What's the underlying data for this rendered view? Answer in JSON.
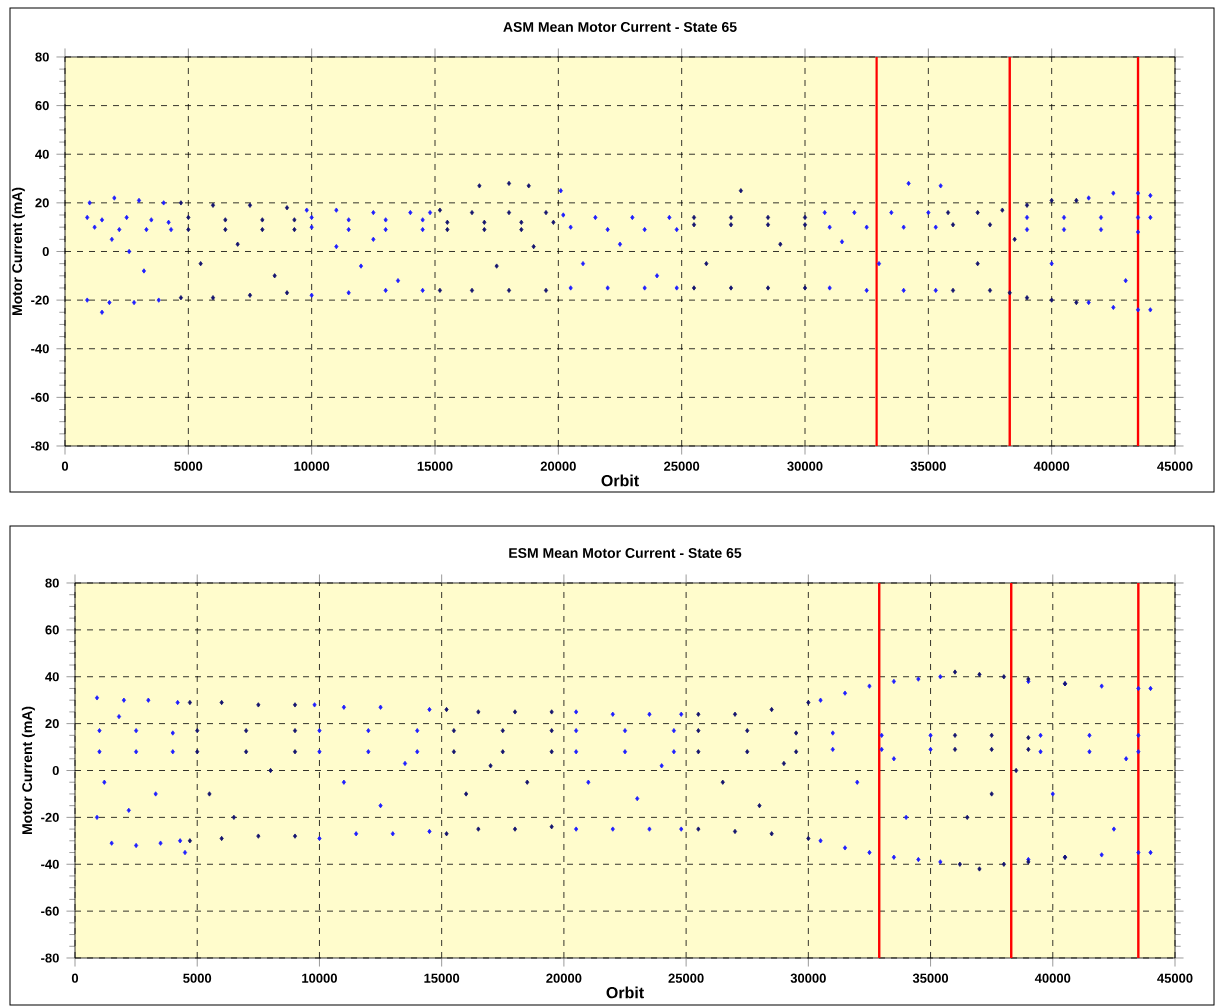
{
  "chart_data": [
    {
      "type": "scatter",
      "title": "ASM Mean Motor Current - State 65",
      "xlabel": "Orbit",
      "ylabel": "Motor Current (mA)",
      "xlim": [
        0,
        45000
      ],
      "ylim": [
        -80,
        80
      ],
      "xticks": [
        0,
        5000,
        10000,
        15000,
        20000,
        25000,
        30000,
        35000,
        40000,
        45000
      ],
      "yticks": [
        -80,
        -60,
        -40,
        -20,
        0,
        20,
        40,
        60,
        80
      ],
      "grid": true,
      "marker": "diamond",
      "series": [
        {
          "color": "#1e1eff",
          "x": [
            900,
            1500,
            2500,
            3500,
            4200,
            1000,
            2000,
            3000,
            4000,
            1200,
            2200,
            3300,
            4300,
            900,
            1800,
            2800,
            3800,
            1500,
            2600,
            3200,
            1900,
            9800,
            11000,
            12500,
            14000,
            14800,
            10000,
            11500,
            13000,
            14500,
            10000,
            11500,
            13000,
            14500,
            10000,
            11500,
            13000,
            14500,
            11000,
            12000,
            13500,
            12500,
            20200,
            21500,
            23000,
            24500,
            20500,
            22000,
            23500,
            24800,
            20500,
            22000,
            23500,
            24800,
            21000,
            22500,
            24000,
            20100,
            30800,
            32000,
            33500,
            35000,
            31000,
            32500,
            34000,
            35300,
            31000,
            32500,
            34000,
            35300,
            34200,
            35500,
            33000,
            31500,
            39000,
            40500,
            42000,
            43500,
            44000,
            39000,
            40500,
            42000,
            43500,
            41500,
            42500,
            43500,
            44000,
            41500,
            42500,
            43500,
            44000,
            40000,
            43000
          ],
          "values": [
            14,
            13,
            14,
            13,
            12,
            20,
            22,
            21,
            20,
            10,
            9,
            9,
            9,
            -20,
            -21,
            -21,
            -20,
            -25,
            0,
            -8,
            5,
            17,
            17,
            16,
            16,
            16,
            14,
            13,
            13,
            13,
            10,
            9,
            9,
            9,
            -18,
            -17,
            -16,
            -16,
            2,
            -6,
            -12,
            5,
            15,
            14,
            14,
            14,
            10,
            9,
            9,
            9,
            -15,
            -15,
            -15,
            -15,
            -5,
            3,
            -10,
            25,
            16,
            16,
            16,
            16,
            10,
            10,
            10,
            10,
            -15,
            -16,
            -16,
            -16,
            28,
            27,
            -5,
            4,
            14,
            14,
            14,
            14,
            14,
            9,
            9,
            9,
            8,
            22,
            24,
            24,
            23,
            -21,
            -23,
            -24,
            -24,
            -5,
            -12
          ]
        },
        {
          "color": "#14146e",
          "x": [
            4700,
            6000,
            7500,
            9000,
            5000,
            6500,
            8000,
            9300,
            5000,
            6500,
            8000,
            9300,
            4700,
            6000,
            7500,
            9000,
            5500,
            7000,
            8500,
            15200,
            16500,
            18000,
            19500,
            15500,
            17000,
            18500,
            19800,
            15500,
            17000,
            18500,
            15200,
            16500,
            18000,
            19500,
            16800,
            18000,
            18800,
            17500,
            19000,
            25500,
            27000,
            28500,
            30000,
            25500,
            27000,
            28500,
            30000,
            25500,
            27000,
            28500,
            30000,
            27400,
            26000,
            29000,
            35800,
            37000,
            38000,
            36000,
            37500,
            36000,
            37500,
            38300,
            39000,
            40000,
            41000,
            39000,
            40000,
            41000,
            37000,
            38500
          ],
          "values": [
            20,
            19,
            19,
            18,
            14,
            13,
            13,
            13,
            9,
            9,
            9,
            9,
            -19,
            -19,
            -18,
            -17,
            -5,
            3,
            -10,
            17,
            16,
            16,
            16,
            12,
            12,
            12,
            12,
            9,
            9,
            9,
            -16,
            -16,
            -16,
            -16,
            27,
            28,
            27,
            -6,
            2,
            14,
            14,
            14,
            14,
            11,
            11,
            11,
            11,
            -15,
            -15,
            -15,
            -15,
            25,
            -5,
            3,
            16,
            16,
            17,
            11,
            11,
            -16,
            -16,
            -17,
            19,
            21,
            21,
            -19,
            -20,
            -21,
            -5,
            5
          ]
        }
      ],
      "ref_lines": [
        {
          "axis": "x",
          "value": 32900,
          "color": "#ff0000"
        },
        {
          "axis": "x",
          "value": 38300,
          "color": "#ff0000"
        },
        {
          "axis": "x",
          "value": 43500,
          "color": "#ff0000"
        }
      ]
    },
    {
      "type": "scatter",
      "title": "ESM Mean Motor Current - State 65",
      "xlabel": "Orbit",
      "ylabel": "Motor Current (mA)",
      "xlim": [
        0,
        45000
      ],
      "ylim": [
        -80,
        80
      ],
      "xticks": [
        0,
        5000,
        10000,
        15000,
        20000,
        25000,
        30000,
        35000,
        40000,
        45000
      ],
      "yticks": [
        -80,
        -60,
        -40,
        -20,
        0,
        20,
        40,
        60,
        80
      ],
      "grid": true,
      "marker": "diamond",
      "series": [
        {
          "color": "#1e1eff",
          "x": [
            900,
            2000,
            3000,
            4200,
            1000,
            2500,
            4000,
            1000,
            2500,
            4000,
            900,
            1500,
            2500,
            3500,
            4300,
            1200,
            2200,
            3300,
            1800,
            4500,
            9800,
            11000,
            12500,
            14500,
            10000,
            12000,
            14000,
            10000,
            12000,
            14000,
            10000,
            11500,
            13000,
            14500,
            11000,
            12500,
            13500,
            20500,
            22000,
            23500,
            24800,
            20500,
            22500,
            24500,
            20500,
            22500,
            24500,
            20500,
            22000,
            23500,
            24800,
            21000,
            23000,
            24000,
            30500,
            31500,
            32500,
            33500,
            34500,
            35400,
            31000,
            33000,
            35000,
            31000,
            33000,
            35000,
            30500,
            31500,
            32500,
            33500,
            34500,
            35400,
            32000,
            34000,
            33500,
            39000,
            40500,
            42000,
            43500,
            44000,
            39500,
            41500,
            43500,
            39500,
            41500,
            43500,
            39000,
            40500,
            42000,
            43500,
            44000,
            40000,
            42500,
            43000
          ],
          "values": [
            31,
            30,
            30,
            29,
            17,
            17,
            16,
            8,
            8,
            8,
            -20,
            -31,
            -32,
            -31,
            -30,
            -5,
            -17,
            -10,
            23,
            -35,
            28,
            27,
            27,
            26,
            17,
            17,
            17,
            8,
            8,
            8,
            -29,
            -27,
            -27,
            -26,
            -5,
            -15,
            3,
            25,
            24,
            24,
            24,
            17,
            17,
            17,
            8,
            8,
            8,
            -25,
            -25,
            -25,
            -25,
            -5,
            -12,
            2,
            30,
            33,
            36,
            38,
            39,
            40,
            16,
            15,
            15,
            9,
            9,
            9,
            -30,
            -33,
            -35,
            -37,
            -38,
            -39,
            -5,
            -20,
            5,
            38,
            37,
            36,
            35,
            35,
            15,
            15,
            15,
            8,
            8,
            8,
            -38,
            -37,
            -36,
            -35,
            -35,
            -10,
            -25,
            5
          ]
        },
        {
          "color": "#14146e",
          "x": [
            4700,
            6000,
            7500,
            9000,
            5000,
            7000,
            9000,
            5000,
            7000,
            9000,
            4700,
            6000,
            7500,
            9000,
            5500,
            6500,
            8000,
            15200,
            16500,
            18000,
            19500,
            15500,
            17500,
            19500,
            15500,
            17500,
            19500,
            15200,
            16500,
            18000,
            19500,
            16000,
            18500,
            17000,
            25500,
            27000,
            28500,
            30000,
            25500,
            27500,
            29500,
            25500,
            27500,
            29500,
            25500,
            27000,
            28500,
            30000,
            26500,
            28000,
            29000,
            36000,
            37000,
            38000,
            39000,
            40500,
            36000,
            37500,
            39000,
            36000,
            37500,
            39000,
            36200,
            37000,
            38000,
            39000,
            40500,
            36500,
            37500,
            38500
          ],
          "values": [
            29,
            29,
            28,
            28,
            17,
            17,
            17,
            8,
            8,
            8,
            -30,
            -29,
            -28,
            -28,
            -10,
            -20,
            0,
            26,
            25,
            25,
            25,
            17,
            17,
            17,
            8,
            8,
            8,
            -27,
            -25,
            -25,
            -24,
            -10,
            -5,
            2,
            24,
            24,
            26,
            29,
            17,
            17,
            16,
            8,
            8,
            8,
            -25,
            -26,
            -27,
            -29,
            -5,
            -15,
            3,
            42,
            41,
            40,
            39,
            37,
            15,
            15,
            14,
            9,
            9,
            9,
            -40,
            -42,
            -40,
            -39,
            -37,
            -20,
            -10,
            0
          ]
        }
      ],
      "ref_lines": [
        {
          "axis": "x",
          "value": 32900,
          "color": "#ff0000"
        },
        {
          "axis": "x",
          "value": 38300,
          "color": "#ff0000"
        },
        {
          "axis": "x",
          "value": 43500,
          "color": "#ff0000"
        }
      ]
    }
  ]
}
